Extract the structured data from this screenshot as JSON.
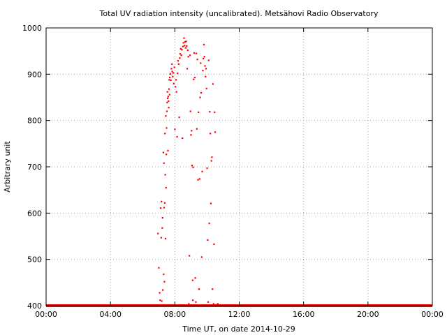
{
  "chart_data": {
    "type": "scatter",
    "title": "Total UV radiation intensity (uncalibrated). Metsähovi Radio Observatory",
    "xlabel": "Time UT, on date 2014-10-29",
    "ylabel": "Arbitrary unit",
    "xlim": [
      "00:00",
      "24:00"
    ],
    "ylim": [
      400,
      1000
    ],
    "x_ticks": [
      "00:00",
      "04:00",
      "08:00",
      "12:00",
      "16:00",
      "20:00",
      "00:00"
    ],
    "y_ticks": [
      400,
      500,
      600,
      700,
      800,
      900,
      1000
    ],
    "grid": true,
    "legend": "none",
    "point_color": "#ff0000",
    "series": [
      {
        "baseline": {
          "from": "00:00",
          "to": "24:00",
          "value": 400
        },
        "points": [
          [
            "06:57",
            556
          ],
          [
            "07:00",
            482
          ],
          [
            "07:03",
            428
          ],
          [
            "07:05",
            412
          ],
          [
            "07:07",
            611
          ],
          [
            "07:09",
            547
          ],
          [
            "07:10",
            625
          ],
          [
            "07:11",
            410
          ],
          [
            "07:13",
            568
          ],
          [
            "07:14",
            590
          ],
          [
            "07:15",
            434
          ],
          [
            "07:17",
            731
          ],
          [
            "07:18",
            468
          ],
          [
            "07:19",
            708
          ],
          [
            "07:20",
            612
          ],
          [
            "07:21",
            452
          ],
          [
            "07:22",
            622
          ],
          [
            "07:23",
            772
          ],
          [
            "07:24",
            683
          ],
          [
            "07:25",
            545
          ],
          [
            "07:26",
            810
          ],
          [
            "07:27",
            655
          ],
          [
            "07:28",
            727
          ],
          [
            "07:29",
            784
          ],
          [
            "07:30",
            820
          ],
          [
            "07:31",
            839
          ],
          [
            "07:32",
            862
          ],
          [
            "07:33",
            848
          ],
          [
            "07:34",
            735
          ],
          [
            "07:35",
            852
          ],
          [
            "07:36",
            842
          ],
          [
            "07:37",
            828
          ],
          [
            "07:38",
            868
          ],
          [
            "07:39",
            888
          ],
          [
            "07:40",
            856
          ],
          [
            "07:41",
            893
          ],
          [
            "07:43",
            901
          ],
          [
            "07:45",
            887
          ],
          [
            "07:47",
            912
          ],
          [
            "07:49",
            922
          ],
          [
            "07:50",
            906
          ],
          [
            "07:52",
            895
          ],
          [
            "07:54",
            903
          ],
          [
            "07:56",
            880
          ],
          [
            "07:58",
            915
          ],
          [
            "08:00",
            781
          ],
          [
            "08:02",
            873
          ],
          [
            "08:04",
            888
          ],
          [
            "08:06",
            862
          ],
          [
            "08:08",
            765
          ],
          [
            "08:10",
            902
          ],
          [
            "08:12",
            929
          ],
          [
            "08:14",
            922
          ],
          [
            "08:16",
            807
          ],
          [
            "08:18",
            935
          ],
          [
            "08:20",
            944
          ],
          [
            "08:22",
            955
          ],
          [
            "08:24",
            941
          ],
          [
            "08:26",
            953
          ],
          [
            "08:28",
            762
          ],
          [
            "08:30",
            960
          ],
          [
            "08:32",
            968
          ],
          [
            "08:34",
            978
          ],
          [
            "08:36",
            962
          ],
          [
            "08:38",
            970
          ],
          [
            "08:40",
            957
          ],
          [
            "08:42",
            971
          ],
          [
            "08:44",
            961
          ],
          [
            "08:46",
            912
          ],
          [
            "08:48",
            952
          ],
          [
            "08:50",
            938
          ],
          [
            "08:52",
            404
          ],
          [
            "08:54",
            508
          ],
          [
            "08:56",
            941
          ],
          [
            "08:58",
            820
          ],
          [
            "09:00",
            769
          ],
          [
            "09:02",
            778
          ],
          [
            "09:04",
            703
          ],
          [
            "09:06",
            455
          ],
          [
            "09:07",
            412
          ],
          [
            "09:08",
            699
          ],
          [
            "09:10",
            889
          ],
          [
            "09:12",
            946
          ],
          [
            "09:14",
            893
          ],
          [
            "09:16",
            460
          ],
          [
            "09:18",
            408
          ],
          [
            "09:20",
            945
          ],
          [
            "09:22",
            782
          ],
          [
            "09:24",
            932
          ],
          [
            "09:26",
            672
          ],
          [
            "09:28",
            818
          ],
          [
            "09:30",
            436
          ],
          [
            "09:32",
            674
          ],
          [
            "09:34",
            850
          ],
          [
            "09:36",
            924
          ],
          [
            "09:38",
            860
          ],
          [
            "09:40",
            505
          ],
          [
            "09:42",
            690
          ],
          [
            "09:44",
            908
          ],
          [
            "09:46",
            934
          ],
          [
            "09:48",
            964
          ],
          [
            "09:50",
            938
          ],
          [
            "09:52",
            918
          ],
          [
            "09:54",
            895
          ],
          [
            "09:56",
            912
          ],
          [
            "09:58",
            869
          ],
          [
            "10:00",
            697
          ],
          [
            "10:02",
            542
          ],
          [
            "10:04",
            408
          ],
          [
            "10:06",
            930
          ],
          [
            "10:08",
            578
          ],
          [
            "10:10",
            819
          ],
          [
            "10:12",
            772
          ],
          [
            "10:14",
            621
          ],
          [
            "10:16",
            713
          ],
          [
            "10:18",
            721
          ],
          [
            "10:20",
            436
          ],
          [
            "10:22",
            879
          ],
          [
            "10:24",
            404
          ],
          [
            "10:26",
            533
          ],
          [
            "10:28",
            818
          ],
          [
            "10:30",
            775
          ],
          [
            "10:34",
            402
          ],
          [
            "10:40",
            404
          ]
        ]
      }
    ]
  }
}
